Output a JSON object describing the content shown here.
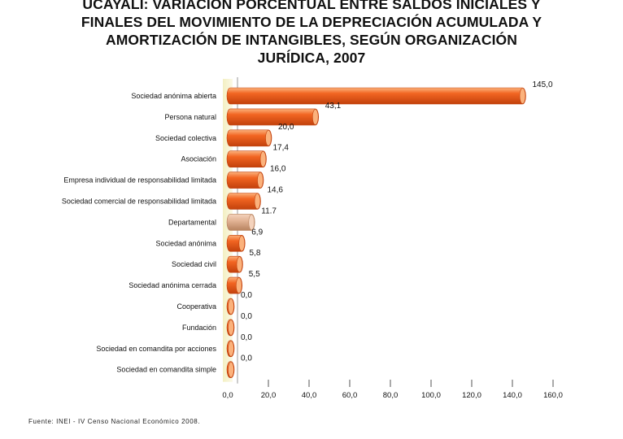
{
  "title_lines": [
    "UCAYALI: VARIACIÓN PORCENTUAL ENTRE SALDOS INICIALES Y",
    "FINALES DEL MOVIMIENTO DE LA DEPRECIACIÓN ACUMULADA Y",
    "AMORTIZACIÓN DE INTANGIBLES, SEGÚN ORGANIZACIÓN",
    "JURÍDICA, 2007"
  ],
  "source": "Fuente: INEI - IV Censo Nacional Económico 2008.",
  "colors": {
    "bar": "#f26522",
    "bar_dark": "#c2410c",
    "bar_light": "#fbb27c",
    "highlight_bar": "#e3b496",
    "highlight_dark": "#b8835f",
    "axis": "#555555"
  },
  "chart_data": {
    "type": "bar",
    "orientation": "horizontal",
    "title": "UCAYALI: VARIACIÓN PORCENTUAL ENTRE SALDOS INICIALES Y FINALES DEL MOVIMIENTO DE LA DEPRECIACIÓN ACUMULADA Y AMORTIZACIÓN DE INTANGIBLES, SEGÚN ORGANIZACIÓN JURÍDICA, 2007",
    "categories": [
      "Sociedad anónima abierta",
      "Persona natural",
      "Sociedad colectiva",
      "Asociación",
      "Empresa individual de responsabilidad limitada",
      "Sociedad comercial de responsabilidad limitada",
      "Departamental",
      "Sociedad anónima",
      "Sociedad civil",
      "Sociedad anónima cerrada",
      "Cooperativa",
      "Fundación",
      "Sociedad en comandita por acciones",
      "Sociedad en comandita simple"
    ],
    "values": [
      145.0,
      43.1,
      20.0,
      17.4,
      16.0,
      14.6,
      11.7,
      6.9,
      5.8,
      5.5,
      0.0,
      0.0,
      0.0,
      0.0
    ],
    "value_labels": [
      "145,0",
      "43,1",
      "20,0",
      "17,4",
      "16,0",
      "14,6",
      "11.7",
      "6,9",
      "5,8",
      "5,5",
      "0,0",
      "0,0",
      "0,0",
      "0,0"
    ],
    "highlight_index": 6,
    "xlim": [
      0,
      160
    ],
    "xticks": [
      0,
      20,
      40,
      60,
      80,
      100,
      120,
      140,
      160
    ],
    "xtick_labels": [
      "0,0",
      "20,0",
      "40,0",
      "60,0",
      "80,0",
      "100,0",
      "120,0",
      "140,0",
      "160,0"
    ],
    "xlabel": "",
    "ylabel": ""
  }
}
